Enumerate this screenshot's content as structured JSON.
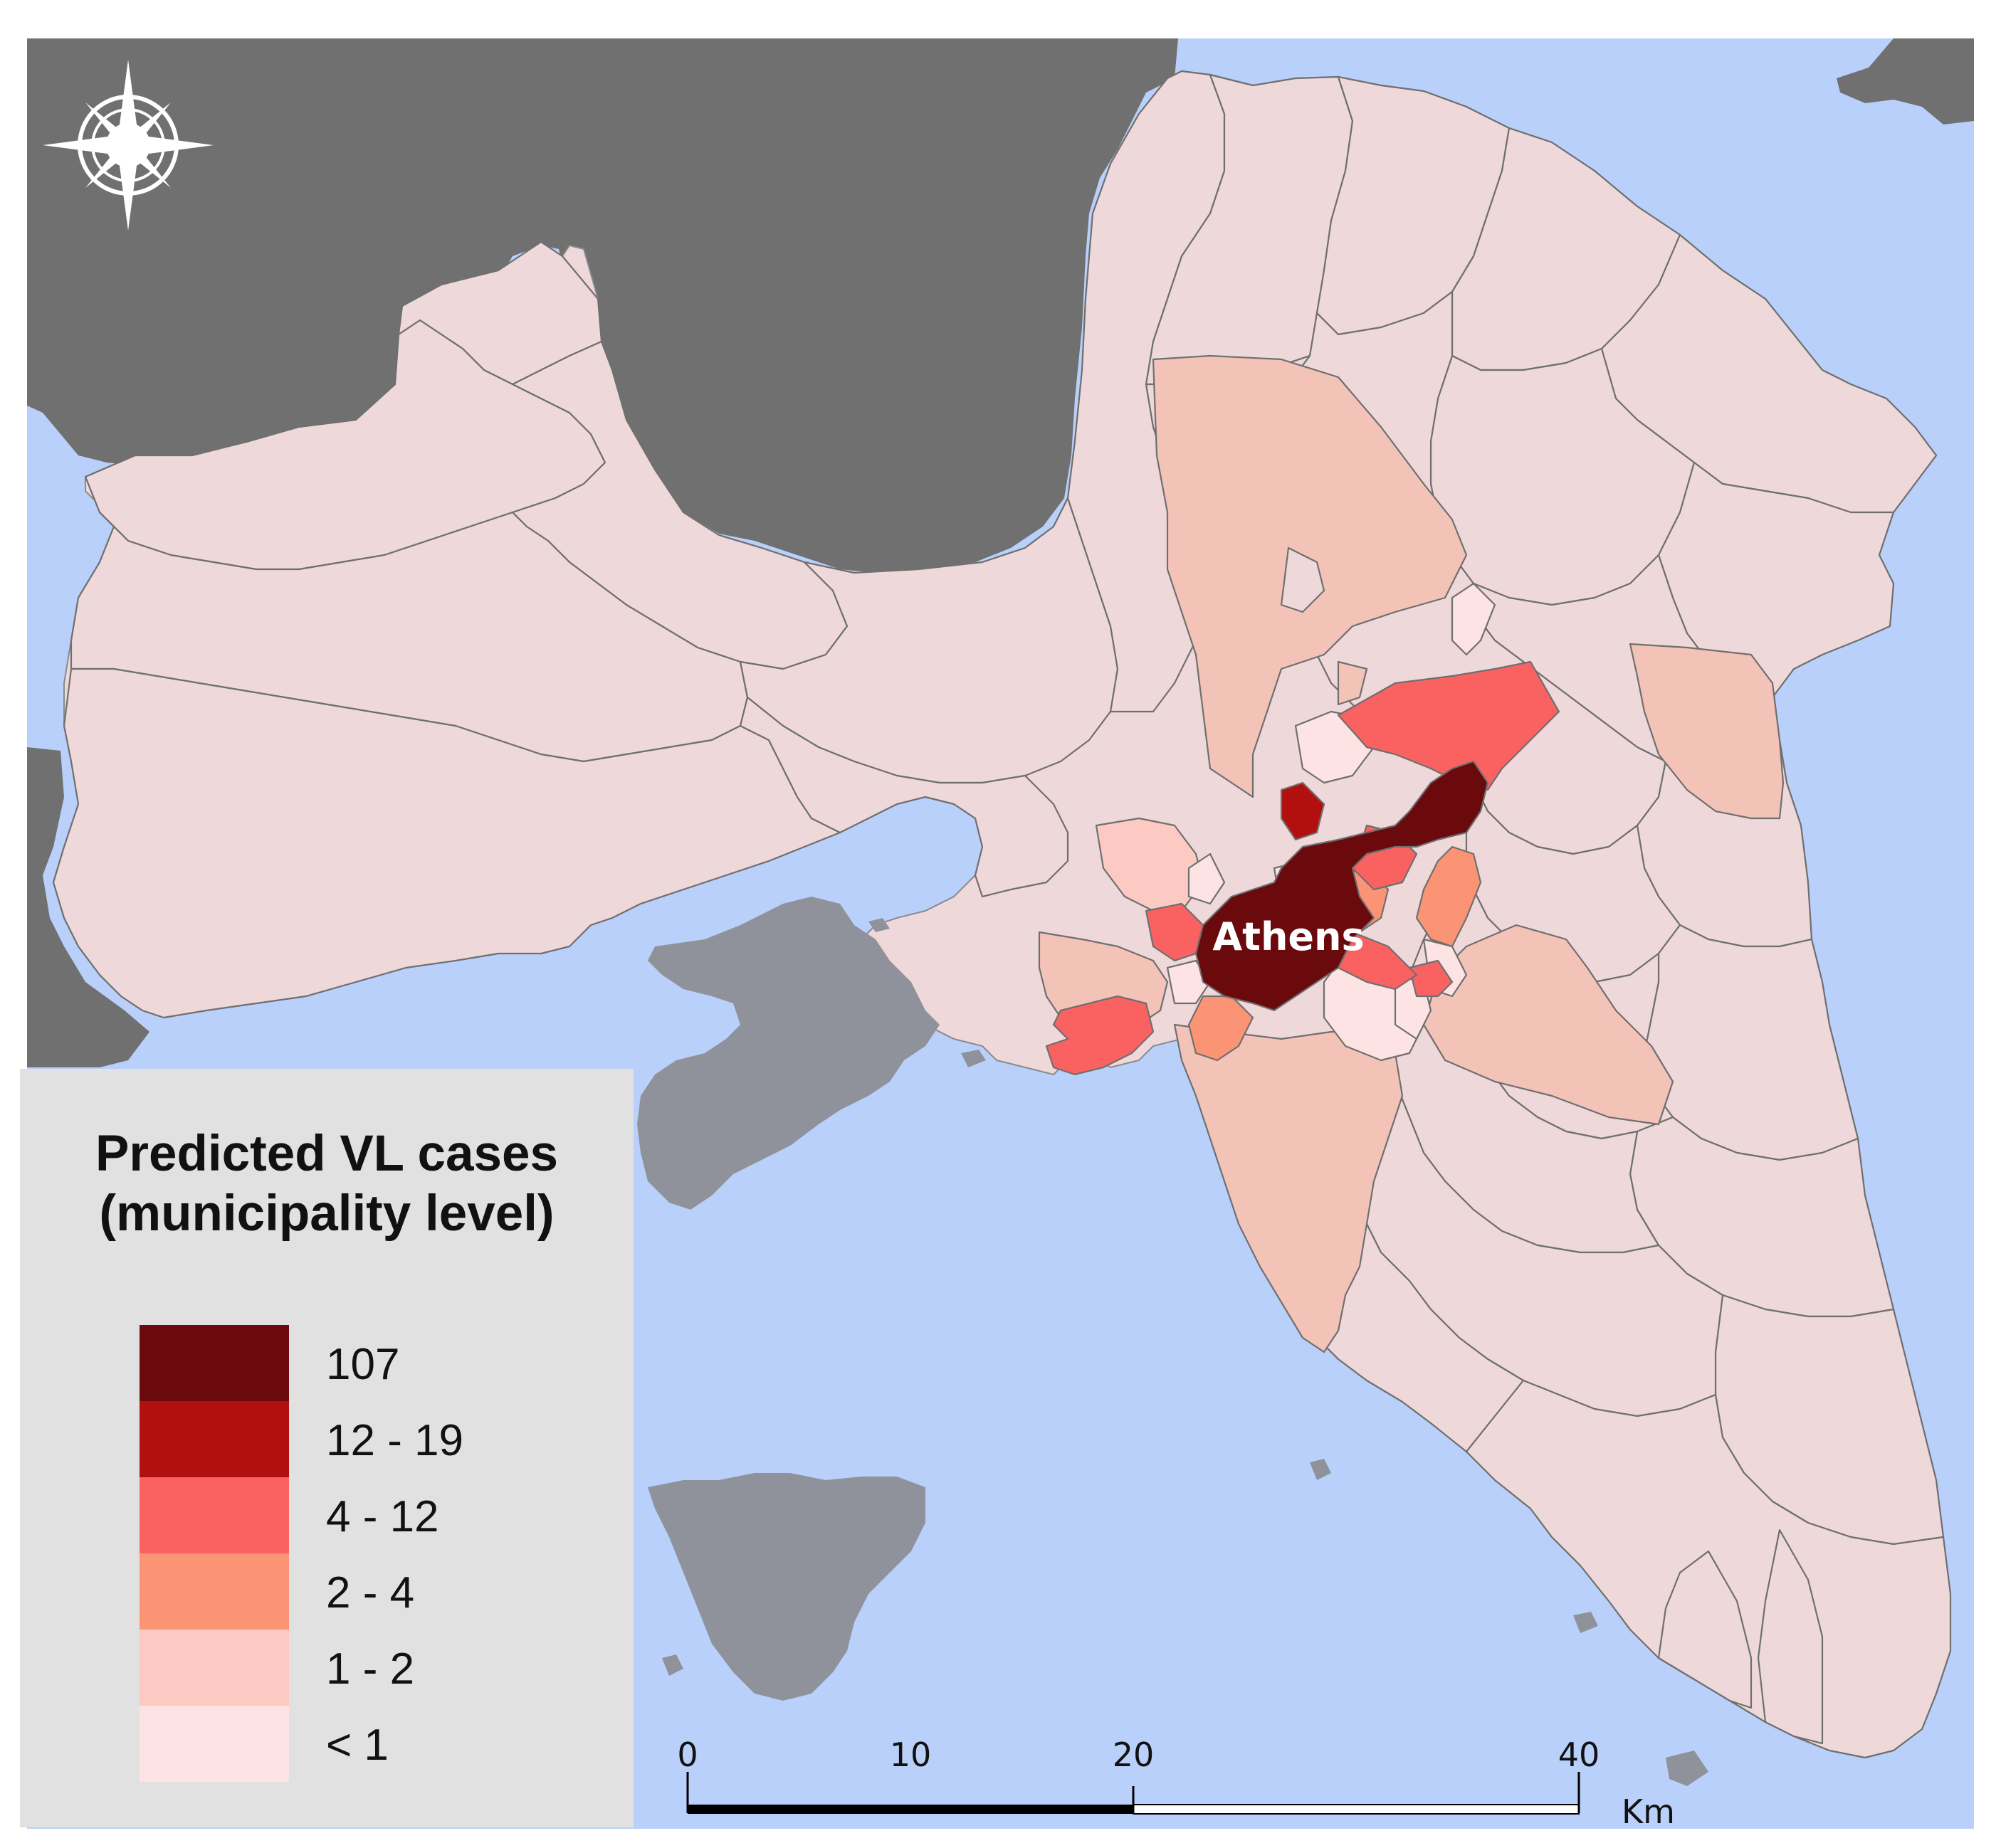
{
  "map": {
    "city_label": "Athens",
    "colors": {
      "sea": "#b9d0fb",
      "outside_land": "#707070",
      "islands": "#8f929a",
      "base_municipality": "#efd8da"
    }
  },
  "legend": {
    "title": "Predicted VL cases\n(municipality level)",
    "classes": [
      {
        "label": "107",
        "color": "#6b0a0c"
      },
      {
        "label": "12 - 19",
        "color": "#b20f0f"
      },
      {
        "label": "4 - 12",
        "color": "#fa6262"
      },
      {
        "label": "2 - 4",
        "color": "#fa9474"
      },
      {
        "label": "1 - 2",
        "color": "#fccac2"
      },
      {
        "label": "< 1",
        "color": "#fde3e3"
      }
    ]
  },
  "scale_bar": {
    "ticks": [
      "0",
      "10",
      "20",
      "40"
    ],
    "unit": "Km"
  },
  "compass": {
    "icon": "compass-rose-icon"
  }
}
